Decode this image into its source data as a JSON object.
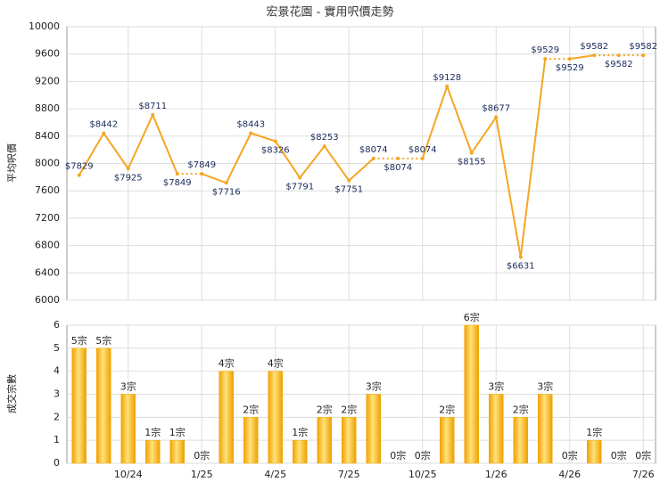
{
  "chart_data": [
    {
      "type": "line",
      "title": "宏景花園 - 實用呎價走勢",
      "y_label": "平均呎價",
      "color": "#f5a623",
      "values": [
        7829,
        8442,
        7925,
        8711,
        7849,
        7849,
        7716,
        8443,
        8326,
        7791,
        8253,
        7751,
        8074,
        8074,
        8074,
        9128,
        8155,
        8677,
        6631,
        9529,
        9529,
        9582,
        9582,
        9582
      ],
      "value_labels": [
        "$7829",
        "$8442",
        "$7925",
        "$8711",
        "$7849",
        "$7849",
        "$7716",
        "$8443",
        "$8326",
        "$7791",
        "$8253",
        "$7751",
        "$8074",
        "$8074",
        "$8074",
        "$9128",
        "$8155",
        "$8677",
        "$6631",
        "$9529",
        "$9529",
        "$9582",
        "$9582",
        "$9582"
      ],
      "ylim": [
        6000,
        10000
      ],
      "yticks": [
        6000,
        6400,
        6800,
        7200,
        7600,
        8000,
        8400,
        8800,
        9200,
        9600,
        10000
      ],
      "grid": true
    },
    {
      "type": "bar",
      "y_label": "成交宗數",
      "color": "#f0a800",
      "categories": [
        null,
        null,
        "10/24",
        null,
        null,
        "1/25",
        null,
        null,
        "4/25",
        null,
        null,
        "7/25",
        null,
        null,
        "10/25",
        null,
        null,
        "1/26",
        null,
        null,
        "4/26",
        null,
        null,
        "7/26"
      ],
      "values": [
        5,
        5,
        3,
        1,
        1,
        0,
        4,
        2,
        4,
        1,
        2,
        2,
        3,
        0,
        0,
        2,
        6,
        3,
        2,
        3,
        0,
        1,
        0,
        0
      ],
      "value_labels": [
        "5宗",
        "5宗",
        "3宗",
        "1宗",
        "1宗",
        "0宗",
        "4宗",
        "2宗",
        "4宗",
        "1宗",
        "2宗",
        "2宗",
        "3宗",
        "0宗",
        "0宗",
        "2宗",
        "6宗",
        "3宗",
        "2宗",
        "3宗",
        "0宗",
        "1宗",
        "0宗",
        "0宗"
      ],
      "ylim": [
        0,
        6
      ],
      "yticks": [
        0,
        1,
        2,
        3,
        4,
        5,
        6
      ],
      "grid": true
    }
  ]
}
